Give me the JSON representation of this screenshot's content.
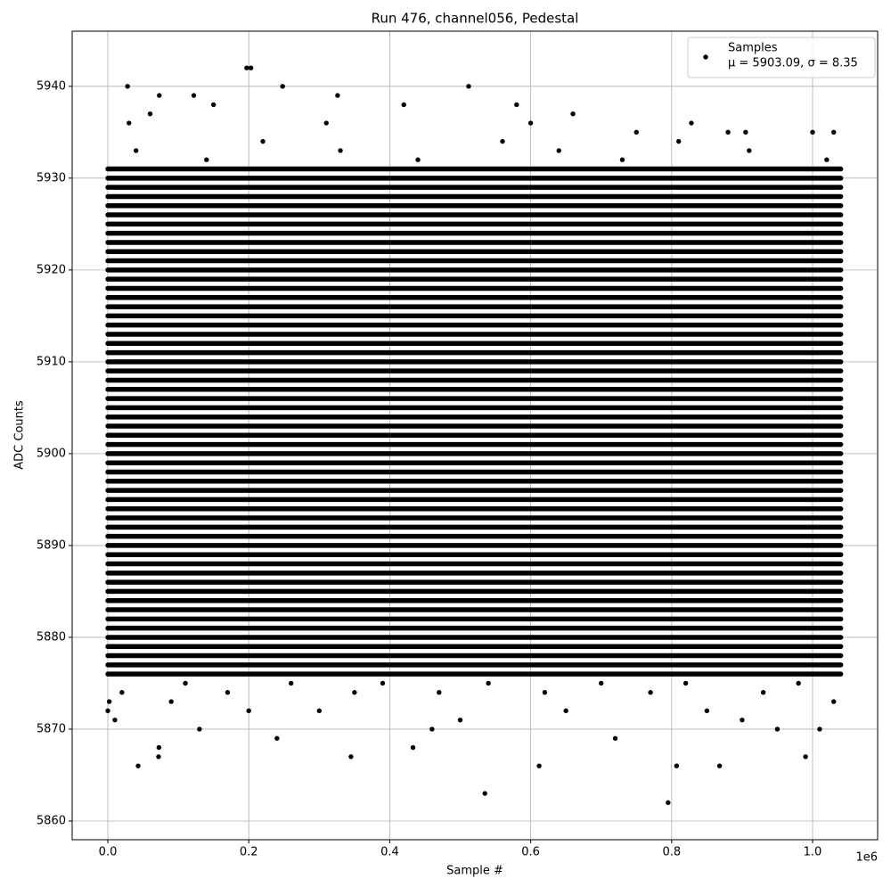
{
  "chart_data": {
    "type": "scatter",
    "title": "Run 476, channel056, Pedestal",
    "x_label": "Sample #",
    "y_label": "ADC Counts",
    "x_offset_label": "1e6",
    "xlim": [
      -50600,
      1092300
    ],
    "ylim": [
      5857.96,
      5946.0
    ],
    "xticks": [
      {
        "value": 0,
        "label": "0.0"
      },
      {
        "value": 200000,
        "label": "0.2"
      },
      {
        "value": 400000,
        "label": "0.4"
      },
      {
        "value": 600000,
        "label": "0.6"
      },
      {
        "value": 800000,
        "label": "0.8"
      },
      {
        "value": 1000000,
        "label": "1.0"
      }
    ],
    "yticks": [
      5860,
      5870,
      5880,
      5890,
      5900,
      5910,
      5920,
      5930,
      5940
    ],
    "grid": true,
    "legend_position": "upper right",
    "legend_note": "μ = 5903.09, σ = 8.35",
    "series": [
      {
        "name": "Samples",
        "color": "#000000",
        "dense_x_range": [
          0,
          1040000
        ],
        "levels": [
          5876,
          5877,
          5878,
          5879,
          5880,
          5881,
          5882,
          5883,
          5884,
          5885,
          5886,
          5887,
          5888,
          5889,
          5890,
          5891,
          5892,
          5893,
          5894,
          5895,
          5896,
          5897,
          5898,
          5899,
          5900,
          5901,
          5902,
          5903,
          5904,
          5905,
          5906,
          5907,
          5908,
          5909,
          5910,
          5911,
          5912,
          5913,
          5914,
          5915,
          5916,
          5917,
          5918,
          5919,
          5920,
          5921,
          5922,
          5923,
          5924,
          5925,
          5926,
          5927,
          5928,
          5929,
          5930,
          5931
        ],
        "x": [
          0,
          2000,
          10000,
          28000,
          43000,
          72000,
          72500,
          73000,
          122000,
          197000,
          203000,
          248000,
          326000,
          345000,
          433000,
          512000,
          535000,
          612000,
          795000,
          807000,
          828000,
          868000,
          905000,
          1000000,
          1030000,
          990000,
          240000,
          720000,
          130000,
          460000,
          950000,
          1010000,
          60000,
          150000,
          420000,
          580000,
          660000,
          750000,
          30000,
          310000,
          600000,
          880000,
          90000,
          200000,
          300000,
          500000,
          650000,
          850000,
          900000,
          1030000,
          20000,
          110000,
          170000,
          260000,
          350000,
          390000,
          470000,
          540000,
          620000,
          700000,
          770000,
          820000,
          930000,
          980000,
          40000,
          140000,
          220000,
          330000,
          440000,
          560000,
          640000,
          730000,
          810000,
          910000,
          1020000
        ],
        "y": [
          5872,
          5873,
          5871,
          5940,
          5866,
          5867,
          5868,
          5939,
          5939,
          5942,
          5942,
          5940,
          5939,
          5867,
          5868,
          5940,
          5863,
          5866,
          5862,
          5866,
          5936,
          5866,
          5935,
          5935,
          5935,
          5867,
          5869,
          5869,
          5870,
          5870,
          5870,
          5870,
          5937,
          5938,
          5938,
          5938,
          5937,
          5935,
          5936,
          5936,
          5936,
          5935,
          5873,
          5872,
          5872,
          5871,
          5872,
          5872,
          5871,
          5873,
          5874,
          5875,
          5874,
          5875,
          5874,
          5875,
          5874,
          5875,
          5874,
          5875,
          5874,
          5875,
          5874,
          5875,
          5933,
          5932,
          5934,
          5933,
          5932,
          5934,
          5933,
          5932,
          5934,
          5933,
          5932
        ]
      }
    ]
  }
}
